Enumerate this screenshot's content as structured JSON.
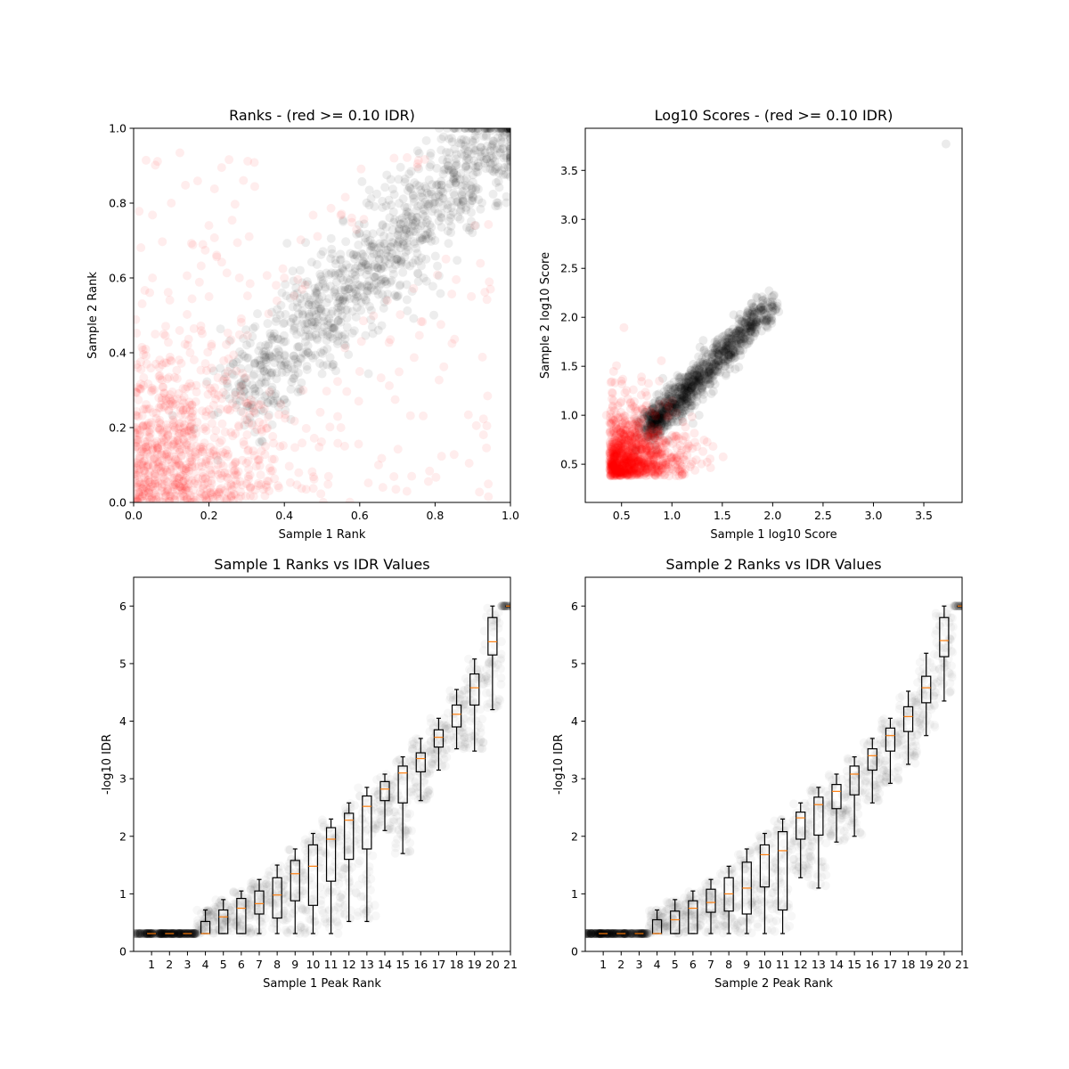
{
  "figure": {
    "background": "#ffffff",
    "colors": {
      "agree": "#000000",
      "disagree": "#ff0000",
      "median": "#ff7f0e",
      "box": "#000000"
    }
  },
  "chart_data": [
    {
      "type": "scatter",
      "title": "Ranks - (red >= 0.10 IDR)",
      "xlabel": "Sample 1 Rank",
      "ylabel": "Sample 2 Rank",
      "xlim": [
        0.0,
        1.0
      ],
      "ylim": [
        0.0,
        1.0
      ],
      "xticks": [
        "0.0",
        "0.2",
        "0.4",
        "0.6",
        "0.8",
        "1.0"
      ],
      "yticks": [
        "0.0",
        "0.2",
        "0.4",
        "0.6",
        "0.8",
        "1.0"
      ],
      "series": [
        {
          "color": "#000000",
          "alpha": 0.07,
          "points": [
            [
              0.3,
              0.32
            ],
            [
              0.35,
              0.42
            ],
            [
              0.4,
              0.48
            ],
            [
              0.45,
              0.4
            ],
            [
              0.5,
              0.55
            ],
            [
              0.55,
              0.6
            ],
            [
              0.6,
              0.58
            ],
            [
              0.65,
              0.68
            ],
            [
              0.7,
              0.65
            ],
            [
              0.75,
              0.78
            ],
            [
              0.8,
              0.8
            ],
            [
              0.85,
              0.88
            ],
            [
              0.9,
              0.9
            ],
            [
              0.95,
              0.95
            ],
            [
              0.98,
              0.99
            ],
            [
              0.6,
              0.72
            ],
            [
              0.7,
              0.55
            ],
            [
              0.5,
              0.45
            ],
            [
              0.8,
              0.7
            ],
            [
              0.9,
              0.82
            ]
          ]
        },
        {
          "color": "#ff0000",
          "alpha": 0.07,
          "points": [
            [
              0.02,
              0.05
            ],
            [
              0.05,
              0.3
            ],
            [
              0.1,
              0.15
            ],
            [
              0.15,
              0.4
            ],
            [
              0.2,
              0.1
            ],
            [
              0.25,
              0.25
            ],
            [
              0.3,
              0.05
            ],
            [
              0.05,
              0.6
            ],
            [
              0.1,
              0.8
            ],
            [
              0.35,
              0.15
            ],
            [
              0.45,
              0.3
            ],
            [
              0.55,
              0.2
            ],
            [
              0.65,
              0.1
            ],
            [
              0.2,
              0.55
            ],
            [
              0.4,
              0.6
            ],
            [
              0.15,
              0.2
            ],
            [
              0.08,
              0.45
            ],
            [
              0.25,
              0.35
            ],
            [
              0.12,
              0.05
            ],
            [
              0.6,
              0.35
            ]
          ]
        }
      ]
    },
    {
      "type": "scatter",
      "title": "Log10 Scores - (red >= 0.10 IDR)",
      "xlabel": "Sample 1 log10 Score",
      "ylabel": "Sample 2 log10 Score",
      "xlim": [
        0.14,
        3.88
      ],
      "ylim": [
        0.11,
        3.93
      ],
      "xticks": [
        "0.5",
        "1.0",
        "1.5",
        "2.0",
        "2.5",
        "3.0",
        "3.5"
      ],
      "yticks": [
        "0.5",
        "1.0",
        "1.5",
        "2.0",
        "2.5",
        "3.0",
        "3.5"
      ],
      "series": [
        {
          "color": "#000000",
          "alpha": 0.08,
          "points": [
            [
              0.8,
              0.85
            ],
            [
              0.95,
              1.0
            ],
            [
              1.1,
              1.2
            ],
            [
              1.25,
              1.4
            ],
            [
              1.4,
              1.55
            ],
            [
              1.55,
              1.75
            ],
            [
              1.7,
              1.95
            ],
            [
              1.85,
              2.2
            ],
            [
              1.0,
              1.1
            ],
            [
              1.3,
              1.3
            ],
            [
              1.5,
              1.8
            ],
            [
              1.2,
              1.1
            ],
            [
              3.72,
              3.77
            ]
          ]
        },
        {
          "color": "#ff0000",
          "alpha": 0.08,
          "points": [
            [
              0.4,
              0.4
            ],
            [
              0.5,
              0.55
            ],
            [
              0.6,
              0.5
            ],
            [
              0.7,
              0.65
            ],
            [
              0.55,
              0.7
            ],
            [
              0.65,
              0.9
            ],
            [
              0.8,
              0.7
            ],
            [
              0.45,
              0.8
            ],
            [
              0.35,
              1.0
            ],
            [
              0.75,
              1.2
            ],
            [
              1.1,
              0.4
            ],
            [
              0.9,
              0.6
            ]
          ]
        }
      ]
    },
    {
      "type": "box",
      "title": "Sample 1 Ranks vs IDR Values",
      "xlabel": "Sample 1 Peak Rank",
      "ylabel": "-log10 IDR",
      "xlim": [
        0,
        21
      ],
      "ylim": [
        0,
        6.5
      ],
      "xticks": [
        "1",
        "2",
        "3",
        "4",
        "5",
        "6",
        "7",
        "8",
        "9",
        "10",
        "11",
        "12",
        "13",
        "14",
        "15",
        "16",
        "17",
        "18",
        "19",
        "20",
        "21"
      ],
      "yticks": [
        "0",
        "1",
        "2",
        "3",
        "4",
        "5",
        "6"
      ],
      "boxes": [
        {
          "q1": 0.31,
          "med": 0.31,
          "q3": 0.31,
          "wlo": 0.31,
          "whi": 0.31
        },
        {
          "q1": 0.31,
          "med": 0.31,
          "q3": 0.31,
          "wlo": 0.31,
          "whi": 0.31
        },
        {
          "q1": 0.31,
          "med": 0.31,
          "q3": 0.31,
          "wlo": 0.31,
          "whi": 0.31
        },
        {
          "q1": 0.31,
          "med": 0.31,
          "q3": 0.52,
          "wlo": 0.31,
          "whi": 0.72
        },
        {
          "q1": 0.31,
          "med": 0.6,
          "q3": 0.72,
          "wlo": 0.31,
          "whi": 0.9
        },
        {
          "q1": 0.31,
          "med": 0.75,
          "q3": 0.92,
          "wlo": 0.31,
          "whi": 1.05
        },
        {
          "q1": 0.65,
          "med": 0.83,
          "q3": 1.05,
          "wlo": 0.31,
          "whi": 1.25
        },
        {
          "q1": 0.58,
          "med": 0.98,
          "q3": 1.28,
          "wlo": 0.31,
          "whi": 1.5
        },
        {
          "q1": 0.88,
          "med": 1.35,
          "q3": 1.58,
          "wlo": 0.31,
          "whi": 1.78
        },
        {
          "q1": 0.8,
          "med": 1.48,
          "q3": 1.85,
          "wlo": 0.31,
          "whi": 2.05
        },
        {
          "q1": 1.22,
          "med": 1.95,
          "q3": 2.15,
          "wlo": 0.31,
          "whi": 2.3
        },
        {
          "q1": 1.6,
          "med": 2.28,
          "q3": 2.4,
          "wlo": 0.52,
          "whi": 2.58
        },
        {
          "q1": 1.78,
          "med": 2.52,
          "q3": 2.7,
          "wlo": 0.52,
          "whi": 2.85
        },
        {
          "q1": 2.62,
          "med": 2.82,
          "q3": 2.95,
          "wlo": 2.1,
          "whi": 3.08
        },
        {
          "q1": 2.58,
          "med": 3.1,
          "q3": 3.22,
          "wlo": 1.7,
          "whi": 3.38
        },
        {
          "q1": 3.12,
          "med": 3.35,
          "q3": 3.45,
          "wlo": 2.62,
          "whi": 3.7
        },
        {
          "q1": 3.55,
          "med": 3.72,
          "q3": 3.85,
          "wlo": 3.15,
          "whi": 4.05
        },
        {
          "q1": 3.9,
          "med": 4.12,
          "q3": 4.28,
          "wlo": 3.52,
          "whi": 4.55
        },
        {
          "q1": 4.28,
          "med": 4.58,
          "q3": 4.82,
          "wlo": 3.48,
          "whi": 5.08
        },
        {
          "q1": 5.15,
          "med": 5.38,
          "q3": 5.8,
          "wlo": 4.2,
          "whi": 6.0
        },
        {
          "q1": 6.0,
          "med": 6.0,
          "q3": 6.0,
          "wlo": 6.0,
          "whi": 6.0
        }
      ]
    },
    {
      "type": "box",
      "title": "Sample 2 Ranks vs IDR Values",
      "xlabel": "Sample 2 Peak Rank",
      "ylabel": "-log10 IDR",
      "xlim": [
        0,
        21
      ],
      "ylim": [
        0,
        6.5
      ],
      "xticks": [
        "1",
        "2",
        "3",
        "4",
        "5",
        "6",
        "7",
        "8",
        "9",
        "10",
        "11",
        "12",
        "13",
        "14",
        "15",
        "16",
        "17",
        "18",
        "19",
        "20",
        "21"
      ],
      "yticks": [
        "0",
        "1",
        "2",
        "3",
        "4",
        "5",
        "6"
      ],
      "boxes": [
        {
          "q1": 0.31,
          "med": 0.31,
          "q3": 0.31,
          "wlo": 0.31,
          "whi": 0.31
        },
        {
          "q1": 0.31,
          "med": 0.31,
          "q3": 0.31,
          "wlo": 0.31,
          "whi": 0.31
        },
        {
          "q1": 0.31,
          "med": 0.31,
          "q3": 0.31,
          "wlo": 0.31,
          "whi": 0.31
        },
        {
          "q1": 0.31,
          "med": 0.31,
          "q3": 0.55,
          "wlo": 0.31,
          "whi": 0.72
        },
        {
          "q1": 0.31,
          "med": 0.55,
          "q3": 0.7,
          "wlo": 0.31,
          "whi": 0.9
        },
        {
          "q1": 0.31,
          "med": 0.75,
          "q3": 0.88,
          "wlo": 0.31,
          "whi": 1.05
        },
        {
          "q1": 0.68,
          "med": 0.85,
          "q3": 1.08,
          "wlo": 0.31,
          "whi": 1.25
        },
        {
          "q1": 0.7,
          "med": 1.0,
          "q3": 1.28,
          "wlo": 0.31,
          "whi": 1.48
        },
        {
          "q1": 0.65,
          "med": 1.1,
          "q3": 1.55,
          "wlo": 0.31,
          "whi": 1.78
        },
        {
          "q1": 1.12,
          "med": 1.68,
          "q3": 1.85,
          "wlo": 0.31,
          "whi": 2.05
        },
        {
          "q1": 0.72,
          "med": 1.75,
          "q3": 2.08,
          "wlo": 0.31,
          "whi": 2.3
        },
        {
          "q1": 1.95,
          "med": 2.32,
          "q3": 2.42,
          "wlo": 1.28,
          "whi": 2.58
        },
        {
          "q1": 2.02,
          "med": 2.55,
          "q3": 2.68,
          "wlo": 1.1,
          "whi": 2.85
        },
        {
          "q1": 2.48,
          "med": 2.78,
          "q3": 2.9,
          "wlo": 1.9,
          "whi": 3.08
        },
        {
          "q1": 2.72,
          "med": 3.08,
          "q3": 3.22,
          "wlo": 2.0,
          "whi": 3.38
        },
        {
          "q1": 3.15,
          "med": 3.4,
          "q3": 3.52,
          "wlo": 2.58,
          "whi": 3.7
        },
        {
          "q1": 3.48,
          "med": 3.75,
          "q3": 3.88,
          "wlo": 2.92,
          "whi": 4.05
        },
        {
          "q1": 3.82,
          "med": 4.08,
          "q3": 4.25,
          "wlo": 3.25,
          "whi": 4.52
        },
        {
          "q1": 4.32,
          "med": 4.58,
          "q3": 4.78,
          "wlo": 3.75,
          "whi": 5.18
        },
        {
          "q1": 5.12,
          "med": 5.4,
          "q3": 5.8,
          "wlo": 4.35,
          "whi": 6.0
        },
        {
          "q1": 6.0,
          "med": 6.0,
          "q3": 6.0,
          "wlo": 6.0,
          "whi": 6.0
        }
      ]
    }
  ]
}
